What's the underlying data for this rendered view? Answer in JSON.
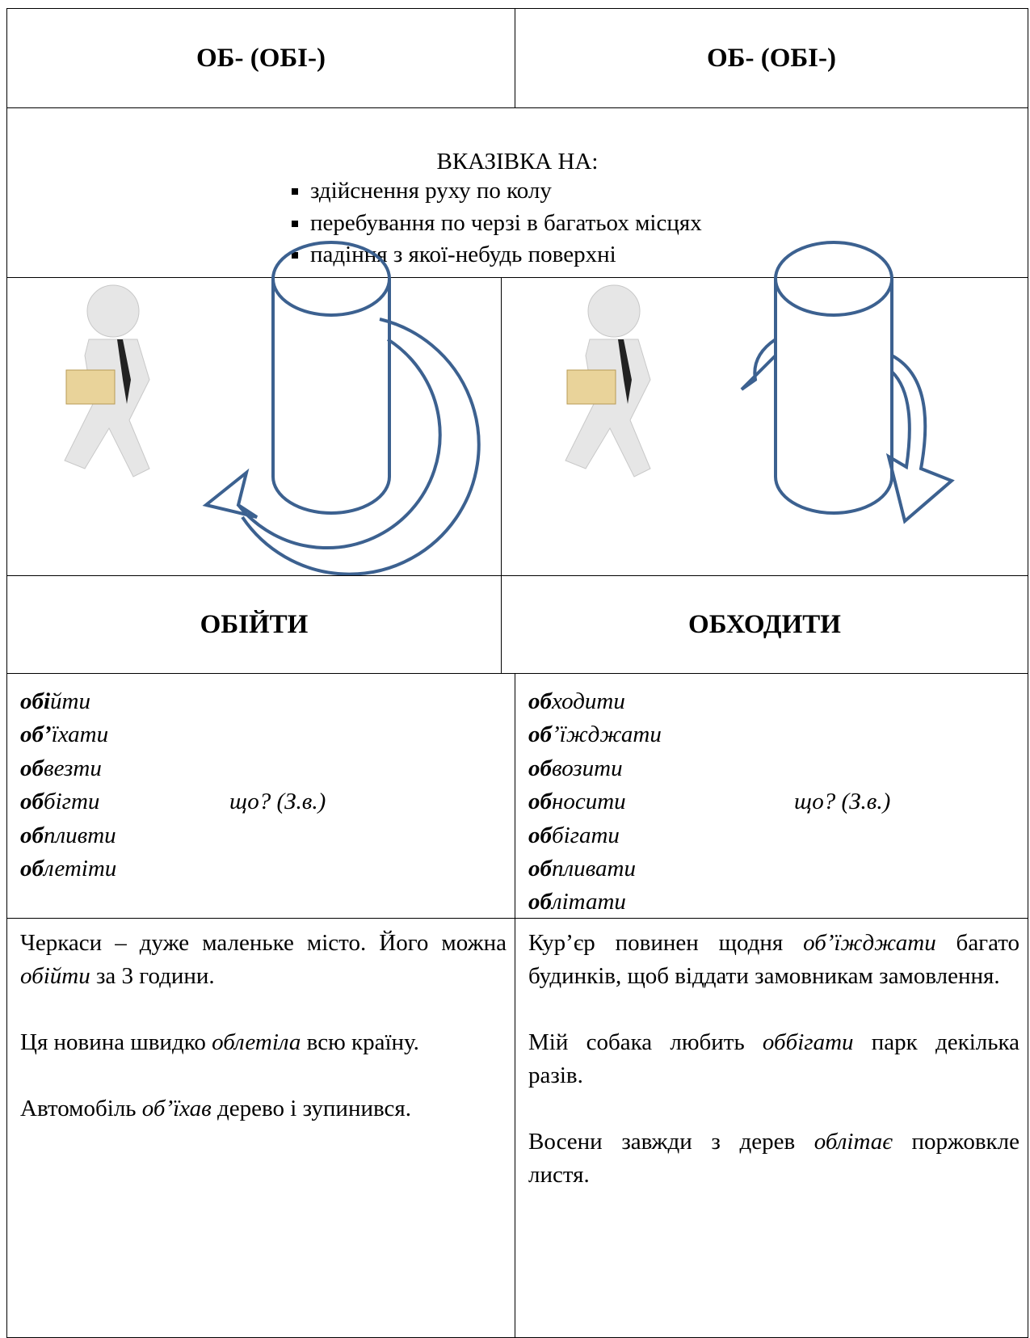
{
  "header": {
    "left": "ОБ- (ОБІ-)",
    "right": "ОБ- (ОБІ-)"
  },
  "meaning": {
    "title": "ВКАЗІВКА НА:",
    "bullets": [
      "здійснення руху по колу",
      "перебування по черзі в багатьох місцях",
      "падіння з якої-небудь поверхні"
    ]
  },
  "verbs": {
    "left": "ОБІЙТИ",
    "right": "ОБХОДИТИ"
  },
  "lists": {
    "left": {
      "words": [
        [
          "обі",
          "йти"
        ],
        [
          "об’",
          "їхати"
        ],
        [
          "об",
          "везти"
        ],
        [
          "об",
          "бігти"
        ],
        [
          "об",
          "пливти"
        ],
        [
          "об",
          "летіти"
        ]
      ],
      "question": "що? (З.в.)"
    },
    "right": {
      "words": [
        [
          "об",
          "ходити"
        ],
        [
          "об",
          "’їжджати"
        ],
        [
          "об",
          "возити"
        ],
        [
          "об",
          "носити"
        ],
        [
          "об",
          "бігати"
        ],
        [
          "об",
          "пливати"
        ],
        [
          "об",
          "літати"
        ]
      ],
      "question": "що? (З.в.)"
    }
  },
  "examples": {
    "left": [
      [
        "Черкаси – дуже маленьке місто. Його можна ",
        "обійти",
        " за 3 години."
      ],
      [
        "Ця новина швидко ",
        "облетіла",
        " всю країну."
      ],
      [
        "Автомобіль ",
        "об’їхав",
        " дерево і зупинився."
      ]
    ],
    "right": [
      [
        "Кур’єр повинен щодня ",
        "об’їжджати",
        " багато будинків, щоб віддати замовникам замовлення."
      ],
      [
        "Мій собака любить ",
        "оббігати",
        " парк декілька разів."
      ],
      [
        "Восени завжди з дерев ",
        "облітає",
        " поржовкле листя."
      ]
    ]
  }
}
